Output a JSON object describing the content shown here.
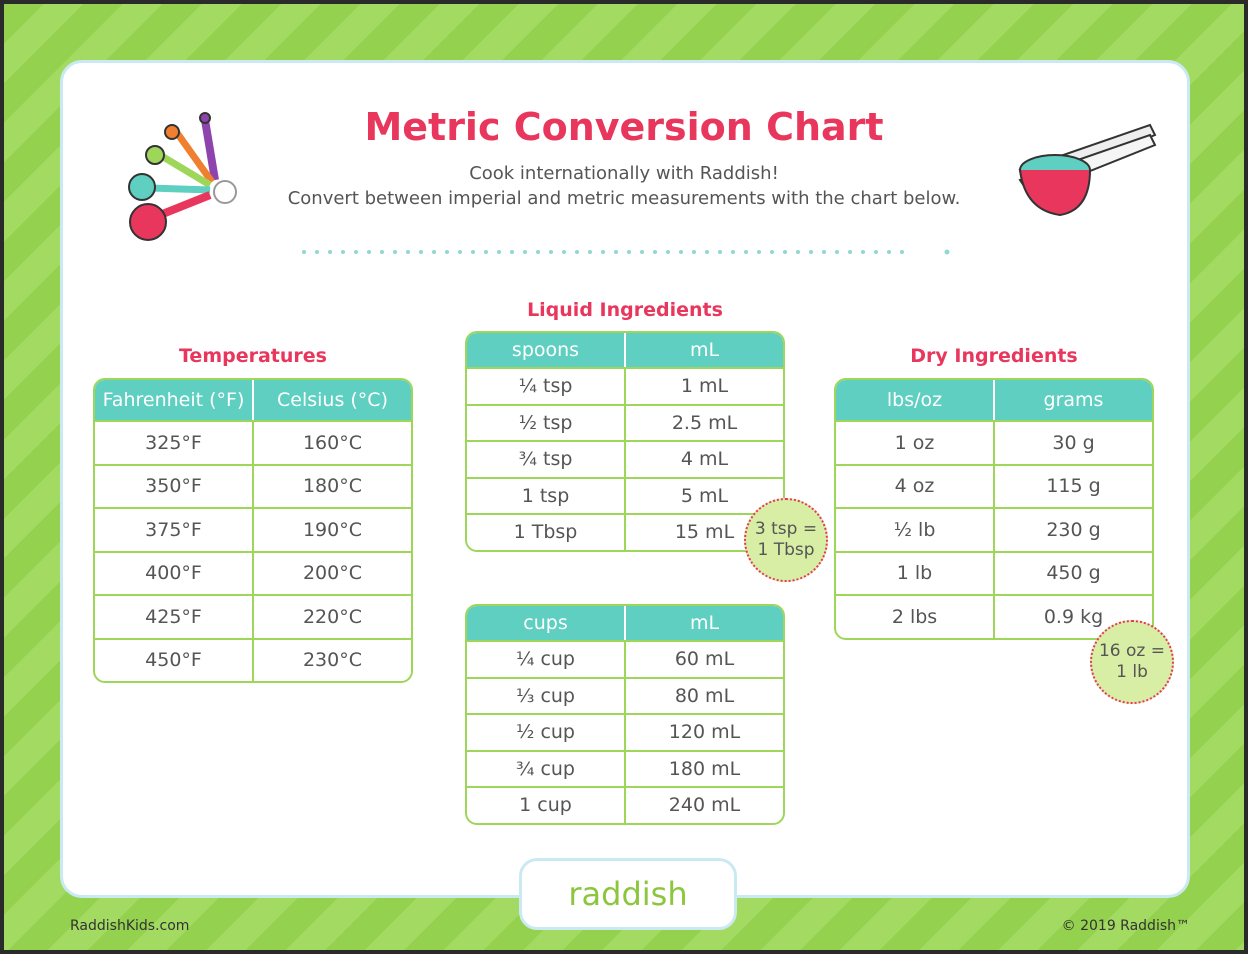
{
  "header": {
    "title": "Metric Conversion Chart",
    "subtitle": [
      "Cook internationally with Raddish!",
      "Convert between imperial and metric measurements with the chart below."
    ]
  },
  "temperatures": {
    "title": "Temperatures",
    "columns": [
      "Fahrenheit (°F)",
      "Celsius (°C)"
    ],
    "rows": [
      [
        "325°F",
        "160°C"
      ],
      [
        "350°F",
        "180°C"
      ],
      [
        "375°F",
        "190°C"
      ],
      [
        "400°F",
        "200°C"
      ],
      [
        "425°F",
        "220°C"
      ],
      [
        "450°F",
        "230°C"
      ]
    ]
  },
  "liquid": {
    "title": "Liquid Ingredients",
    "spoons": {
      "columns": [
        "spoons",
        "mL"
      ],
      "rows": [
        [
          "¼ tsp",
          "1 mL"
        ],
        [
          "½ tsp",
          "2.5 mL"
        ],
        [
          "¾ tsp",
          "4 mL"
        ],
        [
          "1 tsp",
          "5 mL"
        ],
        [
          "1 Tbsp",
          "15 mL"
        ]
      ]
    },
    "cups": {
      "columns": [
        "cups",
        "mL"
      ],
      "rows": [
        [
          "¼ cup",
          "60 mL"
        ],
        [
          "⅓ cup",
          "80 mL"
        ],
        [
          "½ cup",
          "120 mL"
        ],
        [
          "¾ cup",
          "180 mL"
        ],
        [
          "1 cup",
          "240 mL"
        ]
      ]
    },
    "note": [
      "3 tsp =",
      "1 Tbsp"
    ]
  },
  "dry": {
    "title": "Dry Ingredients",
    "columns": [
      "lbs/oz",
      "grams"
    ],
    "rows": [
      [
        "1 oz",
        "30 g"
      ],
      [
        "4 oz",
        "115 g"
      ],
      [
        "½ lb",
        "230 g"
      ],
      [
        "1 lb",
        "450 g"
      ],
      [
        "2 lbs",
        "0.9 kg"
      ]
    ],
    "note": [
      "16 oz =",
      "1 lb"
    ]
  },
  "logo": "raddish",
  "footer": {
    "left": "RaddishKids.com",
    "right": "© 2019 Raddish™"
  }
}
